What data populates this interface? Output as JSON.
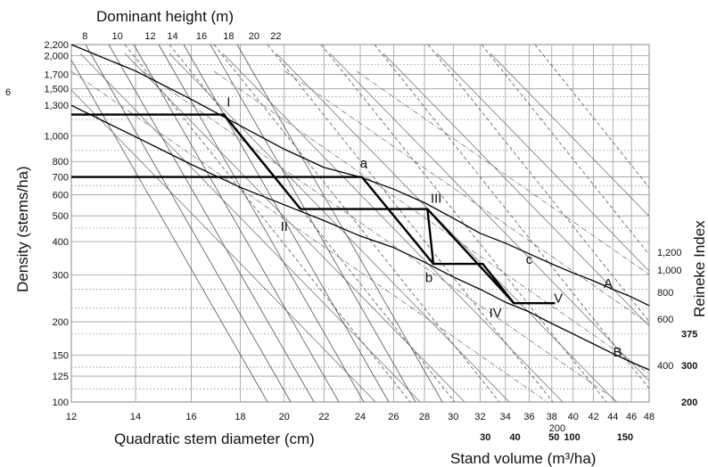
{
  "chart_data": {
    "type": "line",
    "title": "",
    "xlabel": "Quadratic stem diameter (cm)",
    "ylabel": "Density (stems/ha)",
    "top_axis_label": "Dominant height (m)",
    "right_axis_label": "Reineke Index",
    "volume_axis_label": "Stand volume (m³/ha)",
    "x_scale": "log",
    "y_scale": "log",
    "xlim": [
      12,
      48
    ],
    "ylim": [
      100,
      2200
    ],
    "x_ticks": [
      12,
      14,
      16,
      18,
      20,
      22,
      24,
      26,
      28,
      30,
      32,
      34,
      36,
      38,
      40,
      42,
      44,
      46,
      48
    ],
    "x_tick_labels": [
      "12",
      "14",
      "16",
      "18",
      "20",
      "22",
      "24",
      "26",
      "28",
      "30",
      "32",
      "34",
      "36",
      "38",
      "40",
      "42",
      "44",
      "46",
      "48"
    ],
    "y_ticks": [
      100,
      125,
      150,
      200,
      300,
      400,
      500,
      600,
      700,
      800,
      1000,
      1300,
      1500,
      1700,
      2000,
      2200
    ],
    "y_tick_labels": [
      "100",
      "125",
      "150",
      "200",
      "300",
      "400",
      "500",
      "600",
      "700",
      "800",
      "1,000",
      "1,300",
      "1,500",
      "1,700",
      "2,000",
      "2,200"
    ],
    "y_axis_stray_label": "6",
    "top_axis_ticks": [
      {
        "label": "8",
        "at_diameter": 12.4
      },
      {
        "label": "10",
        "at_diameter": 13.4
      },
      {
        "label": "12",
        "at_diameter": 14.5
      },
      {
        "label": "14",
        "at_diameter": 15.3
      },
      {
        "label": "16",
        "at_diameter": 16.4
      },
      {
        "label": "18",
        "at_diameter": 17.5
      },
      {
        "label": "20",
        "at_diameter": 18.6
      },
      {
        "label": "22",
        "at_diameter": 19.6
      }
    ],
    "reineke_ticks": [
      {
        "label": "1,200",
        "at_density": 365
      },
      {
        "label": "1,000",
        "at_density": 313
      },
      {
        "label": "800",
        "at_density": 258
      },
      {
        "label": "600",
        "at_density": 205
      },
      {
        "label": "400",
        "at_density": 137
      }
    ],
    "volume_ticks": [
      {
        "label": "375",
        "at_density": 180,
        "bold": true
      },
      {
        "label": "300",
        "at_density": 137,
        "bold": true
      },
      {
        "label": "200",
        "at_density": 100,
        "bold": true
      }
    ],
    "volume_bottom_ticks": [
      {
        "label": "30",
        "at_diameter": 32.4
      },
      {
        "label": "40",
        "at_diameter": 34.8
      },
      {
        "label": "50",
        "at_diameter": 38.2
      },
      {
        "label": "200",
        "at_diameter": 38.5,
        "bold": false
      },
      {
        "label": "100",
        "at_diameter": 39.9
      },
      {
        "label": "150",
        "at_diameter": 45.3
      }
    ],
    "series": [
      {
        "name": "A",
        "style": "curve",
        "points": [
          [
            12,
            2200
          ],
          [
            14,
            1750
          ],
          [
            16,
            1370
          ],
          [
            18,
            1090
          ],
          [
            20,
            890
          ],
          [
            22,
            760
          ],
          [
            24,
            700
          ],
          [
            26,
            630
          ],
          [
            28,
            560
          ],
          [
            30,
            490
          ],
          [
            32,
            430
          ],
          [
            34,
            395
          ],
          [
            36,
            360
          ],
          [
            38,
            330
          ],
          [
            40,
            305
          ],
          [
            42,
            285
          ],
          [
            44,
            265
          ],
          [
            46,
            248
          ],
          [
            48,
            230
          ]
        ]
      },
      {
        "name": "B",
        "style": "curve",
        "points": [
          [
            12,
            1300
          ],
          [
            14,
            990
          ],
          [
            16,
            780
          ],
          [
            18,
            640
          ],
          [
            20,
            550
          ],
          [
            22,
            480
          ],
          [
            24,
            420
          ],
          [
            26,
            380
          ],
          [
            28,
            335
          ],
          [
            30,
            295
          ],
          [
            32,
            265
          ],
          [
            34,
            237
          ],
          [
            36,
            218
          ],
          [
            38,
            197
          ],
          [
            40,
            180
          ],
          [
            42,
            165
          ],
          [
            44,
            152
          ],
          [
            46,
            141
          ],
          [
            48,
            132
          ]
        ]
      },
      {
        "name": "thinning-path",
        "style": "bold",
        "points": [
          [
            12,
            1200
          ],
          [
            17.3,
            1200
          ],
          [
            20.8,
            530
          ],
          [
            28.2,
            530
          ],
          [
            28.6,
            330
          ],
          [
            32.2,
            330
          ],
          [
            34.7,
            235
          ],
          [
            38.3,
            235
          ]
        ]
      },
      {
        "name": "thinning-path-2",
        "style": "bold",
        "points": [
          [
            12,
            700
          ],
          [
            24.1,
            700
          ],
          [
            28.6,
            330
          ]
        ]
      },
      {
        "name": "thinning-path-3",
        "style": "bold",
        "points": [
          [
            28.2,
            530
          ],
          [
            34.7,
            235
          ]
        ]
      }
    ],
    "annotations": [
      {
        "text": "I",
        "x": 17.5,
        "y": 1290
      },
      {
        "text": "a",
        "x": 24.2,
        "y": 760
      },
      {
        "text": "III",
        "x": 28.8,
        "y": 560
      },
      {
        "text": "II",
        "x": 20.0,
        "y": 440
      },
      {
        "text": "b",
        "x": 28.3,
        "y": 282
      },
      {
        "text": "c",
        "x": 36.0,
        "y": 330
      },
      {
        "text": "IV",
        "x": 33.2,
        "y": 208
      },
      {
        "text": "V",
        "x": 38.6,
        "y": 236
      },
      {
        "text": "A",
        "x": 43.5,
        "y": 268
      },
      {
        "text": "B",
        "x": 44.5,
        "y": 148
      }
    ],
    "grid": true,
    "legend": "none"
  }
}
